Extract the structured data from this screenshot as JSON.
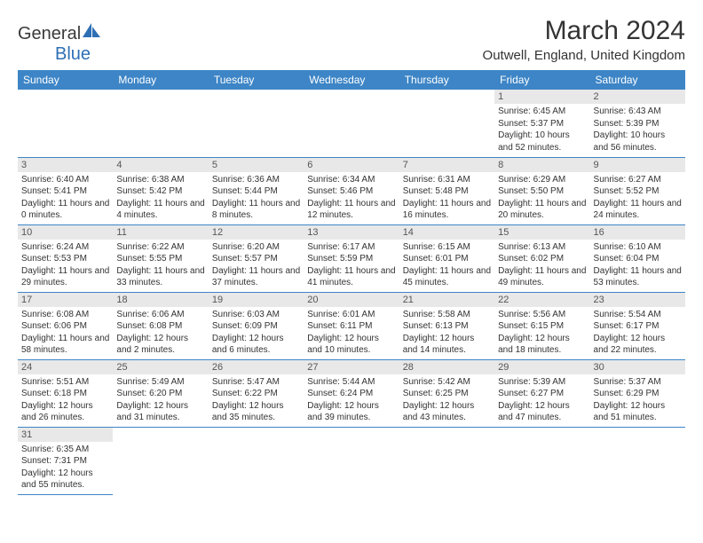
{
  "logo": {
    "first": "General",
    "second": "Blue"
  },
  "title": "March 2024",
  "location": "Outwell, England, United Kingdom",
  "weekdays": [
    "Sunday",
    "Monday",
    "Tuesday",
    "Wednesday",
    "Thursday",
    "Friday",
    "Saturday"
  ],
  "colors": {
    "header_bg": "#3d85c6",
    "header_fg": "#ffffff",
    "daynum_bg": "#e8e8e8",
    "border": "#3d85c6"
  },
  "weeks": [
    [
      null,
      null,
      null,
      null,
      null,
      {
        "n": "1",
        "sr": "Sunrise: 6:45 AM",
        "ss": "Sunset: 5:37 PM",
        "dl": "Daylight: 10 hours and 52 minutes."
      },
      {
        "n": "2",
        "sr": "Sunrise: 6:43 AM",
        "ss": "Sunset: 5:39 PM",
        "dl": "Daylight: 10 hours and 56 minutes."
      }
    ],
    [
      {
        "n": "3",
        "sr": "Sunrise: 6:40 AM",
        "ss": "Sunset: 5:41 PM",
        "dl": "Daylight: 11 hours and 0 minutes."
      },
      {
        "n": "4",
        "sr": "Sunrise: 6:38 AM",
        "ss": "Sunset: 5:42 PM",
        "dl": "Daylight: 11 hours and 4 minutes."
      },
      {
        "n": "5",
        "sr": "Sunrise: 6:36 AM",
        "ss": "Sunset: 5:44 PM",
        "dl": "Daylight: 11 hours and 8 minutes."
      },
      {
        "n": "6",
        "sr": "Sunrise: 6:34 AM",
        "ss": "Sunset: 5:46 PM",
        "dl": "Daylight: 11 hours and 12 minutes."
      },
      {
        "n": "7",
        "sr": "Sunrise: 6:31 AM",
        "ss": "Sunset: 5:48 PM",
        "dl": "Daylight: 11 hours and 16 minutes."
      },
      {
        "n": "8",
        "sr": "Sunrise: 6:29 AM",
        "ss": "Sunset: 5:50 PM",
        "dl": "Daylight: 11 hours and 20 minutes."
      },
      {
        "n": "9",
        "sr": "Sunrise: 6:27 AM",
        "ss": "Sunset: 5:52 PM",
        "dl": "Daylight: 11 hours and 24 minutes."
      }
    ],
    [
      {
        "n": "10",
        "sr": "Sunrise: 6:24 AM",
        "ss": "Sunset: 5:53 PM",
        "dl": "Daylight: 11 hours and 29 minutes."
      },
      {
        "n": "11",
        "sr": "Sunrise: 6:22 AM",
        "ss": "Sunset: 5:55 PM",
        "dl": "Daylight: 11 hours and 33 minutes."
      },
      {
        "n": "12",
        "sr": "Sunrise: 6:20 AM",
        "ss": "Sunset: 5:57 PM",
        "dl": "Daylight: 11 hours and 37 minutes."
      },
      {
        "n": "13",
        "sr": "Sunrise: 6:17 AM",
        "ss": "Sunset: 5:59 PM",
        "dl": "Daylight: 11 hours and 41 minutes."
      },
      {
        "n": "14",
        "sr": "Sunrise: 6:15 AM",
        "ss": "Sunset: 6:01 PM",
        "dl": "Daylight: 11 hours and 45 minutes."
      },
      {
        "n": "15",
        "sr": "Sunrise: 6:13 AM",
        "ss": "Sunset: 6:02 PM",
        "dl": "Daylight: 11 hours and 49 minutes."
      },
      {
        "n": "16",
        "sr": "Sunrise: 6:10 AM",
        "ss": "Sunset: 6:04 PM",
        "dl": "Daylight: 11 hours and 53 minutes."
      }
    ],
    [
      {
        "n": "17",
        "sr": "Sunrise: 6:08 AM",
        "ss": "Sunset: 6:06 PM",
        "dl": "Daylight: 11 hours and 58 minutes."
      },
      {
        "n": "18",
        "sr": "Sunrise: 6:06 AM",
        "ss": "Sunset: 6:08 PM",
        "dl": "Daylight: 12 hours and 2 minutes."
      },
      {
        "n": "19",
        "sr": "Sunrise: 6:03 AM",
        "ss": "Sunset: 6:09 PM",
        "dl": "Daylight: 12 hours and 6 minutes."
      },
      {
        "n": "20",
        "sr": "Sunrise: 6:01 AM",
        "ss": "Sunset: 6:11 PM",
        "dl": "Daylight: 12 hours and 10 minutes."
      },
      {
        "n": "21",
        "sr": "Sunrise: 5:58 AM",
        "ss": "Sunset: 6:13 PM",
        "dl": "Daylight: 12 hours and 14 minutes."
      },
      {
        "n": "22",
        "sr": "Sunrise: 5:56 AM",
        "ss": "Sunset: 6:15 PM",
        "dl": "Daylight: 12 hours and 18 minutes."
      },
      {
        "n": "23",
        "sr": "Sunrise: 5:54 AM",
        "ss": "Sunset: 6:17 PM",
        "dl": "Daylight: 12 hours and 22 minutes."
      }
    ],
    [
      {
        "n": "24",
        "sr": "Sunrise: 5:51 AM",
        "ss": "Sunset: 6:18 PM",
        "dl": "Daylight: 12 hours and 26 minutes."
      },
      {
        "n": "25",
        "sr": "Sunrise: 5:49 AM",
        "ss": "Sunset: 6:20 PM",
        "dl": "Daylight: 12 hours and 31 minutes."
      },
      {
        "n": "26",
        "sr": "Sunrise: 5:47 AM",
        "ss": "Sunset: 6:22 PM",
        "dl": "Daylight: 12 hours and 35 minutes."
      },
      {
        "n": "27",
        "sr": "Sunrise: 5:44 AM",
        "ss": "Sunset: 6:24 PM",
        "dl": "Daylight: 12 hours and 39 minutes."
      },
      {
        "n": "28",
        "sr": "Sunrise: 5:42 AM",
        "ss": "Sunset: 6:25 PM",
        "dl": "Daylight: 12 hours and 43 minutes."
      },
      {
        "n": "29",
        "sr": "Sunrise: 5:39 AM",
        "ss": "Sunset: 6:27 PM",
        "dl": "Daylight: 12 hours and 47 minutes."
      },
      {
        "n": "30",
        "sr": "Sunrise: 5:37 AM",
        "ss": "Sunset: 6:29 PM",
        "dl": "Daylight: 12 hours and 51 minutes."
      }
    ],
    [
      {
        "n": "31",
        "sr": "Sunrise: 6:35 AM",
        "ss": "Sunset: 7:31 PM",
        "dl": "Daylight: 12 hours and 55 minutes."
      },
      null,
      null,
      null,
      null,
      null,
      null
    ]
  ]
}
